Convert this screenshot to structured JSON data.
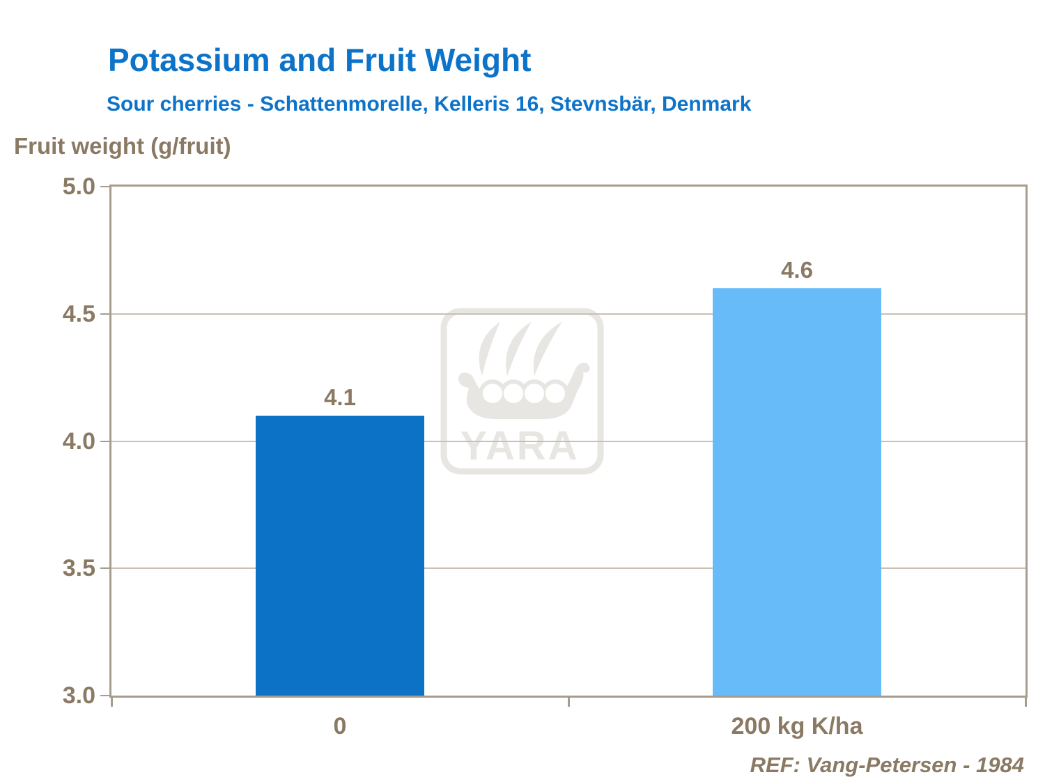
{
  "header": {
    "title": "Potassium and Fruit Weight",
    "subtitle": "Sour cherries - Schattenmorelle, Kelleris 16, Stevnsbär, Denmark"
  },
  "chart_data": {
    "type": "bar",
    "title": "Potassium and Fruit Weight",
    "subtitle": "Sour cherries - Schattenmorelle, Kelleris 16, Stevnsbär, Denmark",
    "categories": [
      "0",
      "200 kg K/ha"
    ],
    "values": [
      4.1,
      4.6
    ],
    "data_labels": [
      "4.1",
      "4.6"
    ],
    "bar_colors": [
      "#0b72c6",
      "#67bbf8"
    ],
    "xlabel": "",
    "ylabel": "Fruit weight (g/fruit)",
    "ylim": [
      3.0,
      5.0
    ],
    "yticks": [
      3.0,
      3.5,
      4.0,
      4.5,
      5.0
    ],
    "ytick_labels": [
      "3.0",
      "3.5",
      "4.0",
      "4.5",
      "5.0"
    ],
    "grid": true,
    "legend": false
  },
  "footer": {
    "reference": "REF: Vang-Petersen - 1984"
  },
  "watermark": {
    "name": "yara-viking-ship-logo",
    "text": "YARA"
  },
  "colors": {
    "title_blue": "#0d73c9",
    "text_brown": "#8a7a64",
    "axis": "#a79d8f",
    "gridline": "#c9c0b3",
    "bar_dark": "#0b72c6",
    "bar_light": "#67bbf8",
    "watermark_gray": "#e8e6e3"
  }
}
